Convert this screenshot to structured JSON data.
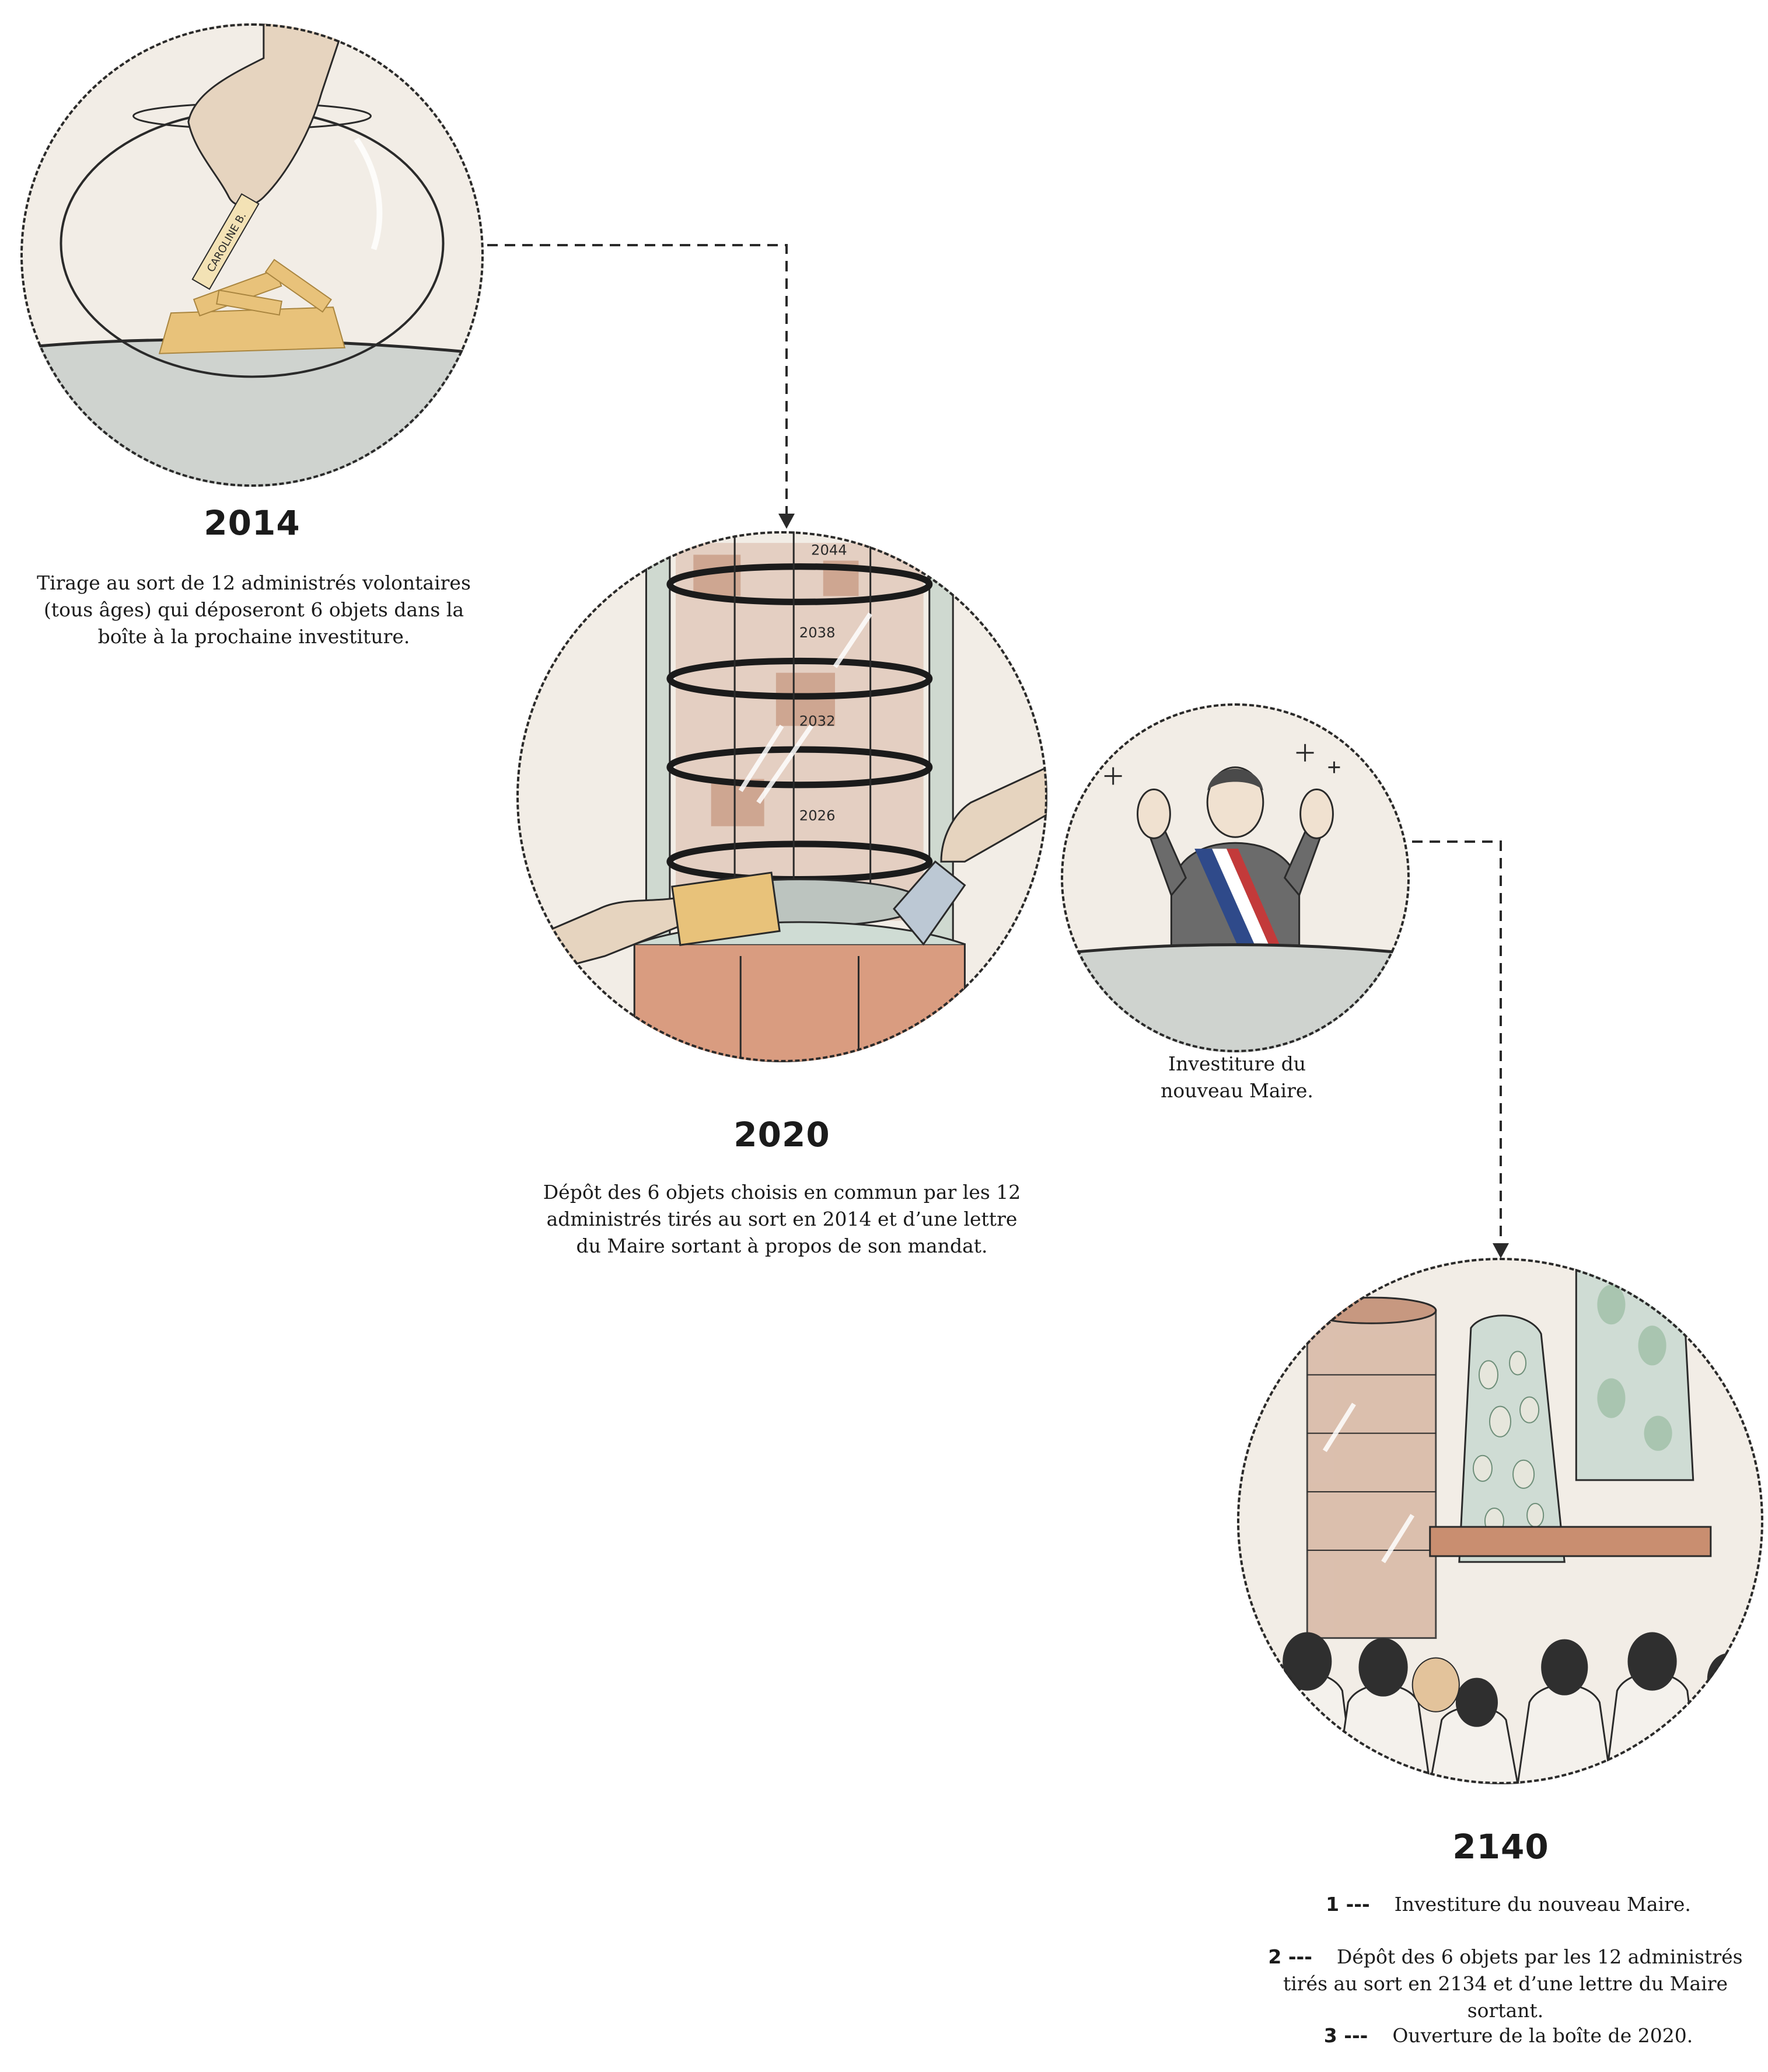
{
  "steps": [
    {
      "year": "2014",
      "text": "Tirage au sort de 12 administrés volontaires (tous âges) qui déposeront 6 objets dans la boîte à la prochaine investiture.",
      "label_on_ticket": "CAROLINE B."
    },
    {
      "year": "2020",
      "text": "Dépôt des 6 objets choisis en commun par les 12 administrés tirés au sort en 2014 et d’une lettre du Maire sortant à propos de son mandat.",
      "drum_labels": [
        "2044",
        "2038",
        "2032",
        "2026"
      ]
    },
    {
      "year": "",
      "text": "Investiture du nouveau Maire."
    },
    {
      "year": "2140",
      "items": [
        {
          "num": "1 ---",
          "text": "Investiture du nouveau Maire."
        },
        {
          "num": "2 ---",
          "text": "Dépôt des 6 objets par les 12 administrés tirés au sort en 2134 et d’une lettre du Maire sortant."
        },
        {
          "num": "3 ---",
          "text": "Ouverture de la boîte de 2020."
        }
      ]
    }
  ],
  "colors": {
    "background": "#ffffff",
    "disc": "#f2ede6",
    "floor": "#cfd3cf",
    "terracotta": "#d9a28a",
    "gold": "#e8c27a",
    "line": "#2a2a2a"
  }
}
